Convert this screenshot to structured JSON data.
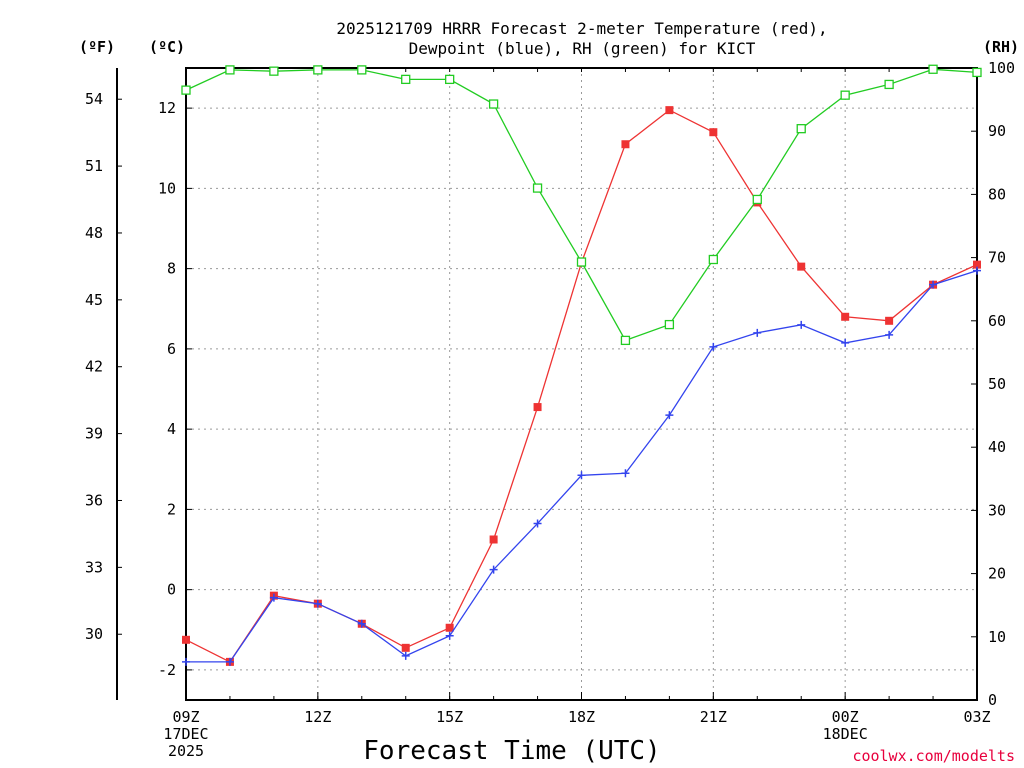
{
  "chart_data": {
    "type": "line",
    "title": [
      "2025121709 HRRR Forecast 2-meter Temperature (red),",
      "Dewpoint (blue), RH (green) for KICT"
    ],
    "xlabel": "Forecast Time (UTC)",
    "credit": "coolwx.com/modelts",
    "units": {
      "fahrenheit": "(ºF)",
      "celsius": "(ºC)",
      "rh": "(RH)"
    },
    "hours": [
      9,
      10,
      11,
      12,
      13,
      14,
      15,
      16,
      17,
      18,
      19,
      20,
      21,
      22,
      23,
      24,
      25,
      26,
      27
    ],
    "xlim": [
      9,
      27
    ],
    "ylim_c": [
      -2.75,
      13
    ],
    "ylim_rh": [
      0,
      100
    ],
    "x_ticks": [
      {
        "hour": 9,
        "lines": [
          "09Z",
          "17DEC",
          "2025"
        ]
      },
      {
        "hour": 12,
        "lines": [
          "12Z"
        ]
      },
      {
        "hour": 15,
        "lines": [
          "15Z"
        ]
      },
      {
        "hour": 18,
        "lines": [
          "18Z"
        ]
      },
      {
        "hour": 21,
        "lines": [
          "21Z"
        ]
      },
      {
        "hour": 24,
        "lines": [
          "00Z",
          "18DEC"
        ]
      },
      {
        "hour": 27,
        "lines": [
          "03Z"
        ]
      }
    ],
    "c_ticks": [
      "12",
      "10",
      "8",
      "6",
      "4",
      "2",
      "0",
      "-2"
    ],
    "f_ticks": [
      "54",
      "51",
      "48",
      "45",
      "42",
      "39",
      "36",
      "33",
      "30"
    ],
    "rh_ticks": [
      "100",
      "90",
      "80",
      "70",
      "60",
      "50",
      "40",
      "30",
      "20",
      "10",
      "0"
    ],
    "colors": {
      "temperature": "#ee3333",
      "dewpoint": "#3344ee",
      "rh": "#22cc22",
      "grid": "#9a9a9a"
    },
    "series": [
      {
        "name": "Temperature",
        "axis": "C",
        "marker": "square-filled",
        "values": [
          -1.25,
          -1.8,
          -0.15,
          -0.35,
          -0.85,
          -1.45,
          -0.95,
          1.25,
          4.55,
          8.15,
          11.1,
          11.95,
          11.4,
          9.65,
          8.05,
          6.8,
          6.7,
          7.6,
          8.1
        ]
      },
      {
        "name": "Dewpoint",
        "axis": "C",
        "marker": "plus",
        "values": [
          -1.8,
          -1.8,
          -0.2,
          -0.35,
          -0.85,
          -1.65,
          -1.15,
          0.5,
          1.65,
          2.85,
          2.9,
          4.35,
          6.05,
          6.4,
          6.6,
          6.15,
          6.35,
          7.6,
          7.95
        ]
      },
      {
        "name": "RH",
        "axis": "RH",
        "marker": "square-open",
        "values": [
          96.5,
          99.7,
          99.5,
          99.7,
          99.7,
          98.2,
          98.2,
          94.3,
          81,
          69.3,
          56.9,
          59.4,
          69.7,
          79.2,
          90.4,
          95.7,
          97.4,
          99.8,
          99.3
        ]
      }
    ]
  }
}
